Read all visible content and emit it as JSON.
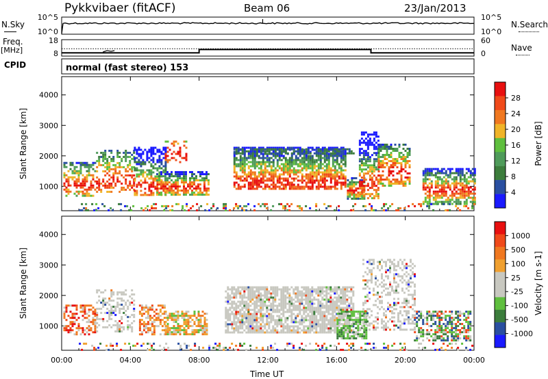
{
  "header": {
    "radar_name": "Pykkvibaer (fitACF)",
    "beam": "Beam 06",
    "date": "23/Jan/2013"
  },
  "side_labels": {
    "nsky": "N.Sky",
    "freq": "Freq.",
    "mhz": "[MHz]",
    "cpid": "CPID",
    "nsearch": "N.Search",
    "nave": "Nave"
  },
  "cpid_text": "normal (fast stereo) 153",
  "colors": {
    "power": [
      "#1a1aff",
      "#2a4fa0",
      "#3c7d3c",
      "#4f9b5a",
      "#5fbf3e",
      "#f0b428",
      "#f07820",
      "#f04a1a",
      "#e81010"
    ],
    "velocity": [
      "#e81010",
      "#f04a1a",
      "#f07820",
      "#f0a030",
      "#c8c8c0",
      "#c8c8c0",
      "#5fbf3e",
      "#3c7d3c",
      "#2a4fa0",
      "#1a1aff"
    ],
    "grey": "#c8c8c0"
  },
  "chart_data": [
    {
      "type": "line",
      "name": "nsky-nsearch-panel",
      "ylabel_left": "N.Sky",
      "ylabel_right": "N.Search",
      "yticks_left": [
        "10^5",
        "10^0"
      ],
      "yticks_right": [
        "10^5",
        "10^0"
      ],
      "xlim": [
        0,
        24
      ]
    },
    {
      "type": "line",
      "name": "freq-nave-panel",
      "ylabel_left": "Freq. [MHz]",
      "ylabel_right": "Nave",
      "yticks_left": [
        "18",
        "8"
      ],
      "yticks_right": [
        "60",
        "0"
      ],
      "freq_steps": [
        {
          "x0": 0,
          "x1": 8,
          "y": 10
        },
        {
          "x0": 8,
          "x1": 18,
          "y": 12
        },
        {
          "x0": 18,
          "x1": 24,
          "y": 10
        }
      ],
      "nave_level": 12.5,
      "xlim": [
        0,
        24
      ],
      "ylim": [
        8,
        18
      ]
    },
    {
      "type": "heatmap",
      "name": "power-panel",
      "ylabel": "Slant Range [km]",
      "yticks": [
        1000,
        2000,
        3000,
        4000
      ],
      "ylim": [
        200,
        4600
      ],
      "xlim": [
        0,
        24
      ],
      "colorbar_label": "Power [dB]",
      "colorbar_ticks": [
        "4",
        "8",
        "12",
        "16",
        "20",
        "24",
        "28"
      ]
    },
    {
      "type": "heatmap",
      "name": "velocity-panel",
      "ylabel": "Slant Range [km]",
      "yticks": [
        1000,
        2000,
        3000,
        4000
      ],
      "ylim": [
        200,
        4600
      ],
      "xlim": [
        0,
        24
      ],
      "colorbar_label": "Velocity [m s-1]",
      "colorbar_ticks": [
        "1000",
        "500",
        "100",
        "25",
        "-25",
        "-100",
        "-500",
        "-1000"
      ]
    }
  ],
  "x_axis": {
    "ticks": [
      "00:00",
      "04:00",
      "08:00",
      "12:00",
      "16:00",
      "20:00",
      "00:00"
    ],
    "label": "Time UT"
  }
}
